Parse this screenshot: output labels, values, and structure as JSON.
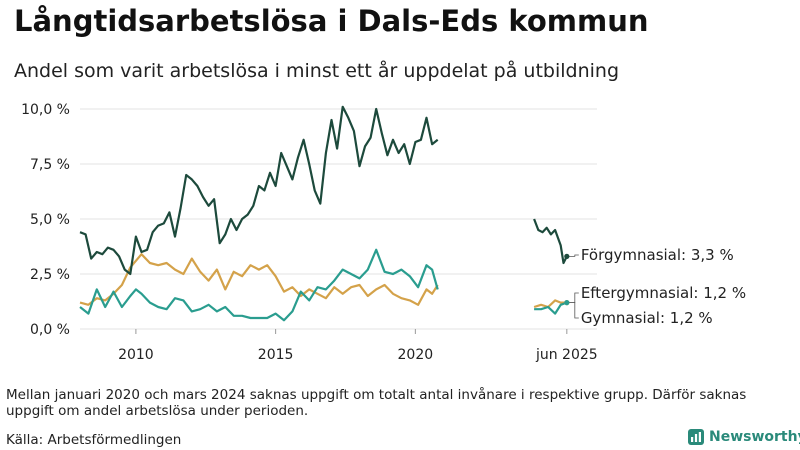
{
  "title": "Långtidsarbetslösa i Dals-Eds kommun",
  "subtitle": "Andel som varit arbetslösa i minst ett år uppdelat på utbildning",
  "note": "Mellan januari 2020 och mars 2024 saknas uppgift om totalt antal invånare i respektive grupp. Därför saknas uppgift om andel arbetslösa under perioden.",
  "source": "Källa: Arbetsförmedlingen",
  "brand": {
    "name": "Newsworthy",
    "icon": "newsworthy-logo-icon"
  },
  "chart_data": {
    "type": "line",
    "xlim": [
      2008.0,
      2026.5
    ],
    "ylim": [
      0,
      10.5
    ],
    "y_ticks": [
      {
        "value": 0,
        "label": "0,0 %"
      },
      {
        "value": 2.5,
        "label": "2,5 %"
      },
      {
        "value": 5,
        "label": "5,0 %"
      },
      {
        "value": 7.5,
        "label": "7,5 %"
      },
      {
        "value": 10,
        "label": "10,0 %"
      }
    ],
    "x_ticks": [
      {
        "value": 2010,
        "label": "2010"
      },
      {
        "value": 2015,
        "label": "2015"
      },
      {
        "value": 2020,
        "label": "2020"
      },
      {
        "value": 2025.42,
        "label": "jun 2025"
      }
    ],
    "grid": "horizontal",
    "series": [
      {
        "name": "Förgymnasial",
        "end_label": "Förgymnasial: 3,3 %",
        "color": "#1d4a3c",
        "segments": [
          [
            [
              2008.0,
              4.4
            ],
            [
              2008.2,
              4.3
            ],
            [
              2008.4,
              3.2
            ],
            [
              2008.6,
              3.5
            ],
            [
              2008.8,
              3.4
            ],
            [
              2009.0,
              3.7
            ],
            [
              2009.2,
              3.6
            ],
            [
              2009.4,
              3.3
            ],
            [
              2009.6,
              2.7
            ],
            [
              2009.8,
              2.5
            ],
            [
              2010.0,
              4.2
            ],
            [
              2010.2,
              3.5
            ],
            [
              2010.4,
              3.6
            ],
            [
              2010.6,
              4.4
            ],
            [
              2010.8,
              4.7
            ],
            [
              2011.0,
              4.8
            ],
            [
              2011.2,
              5.3
            ],
            [
              2011.4,
              4.2
            ],
            [
              2011.6,
              5.5
            ],
            [
              2011.8,
              7.0
            ],
            [
              2012.0,
              6.8
            ],
            [
              2012.2,
              6.5
            ],
            [
              2012.4,
              6.0
            ],
            [
              2012.6,
              5.6
            ],
            [
              2012.8,
              5.9
            ],
            [
              2013.0,
              3.9
            ],
            [
              2013.2,
              4.3
            ],
            [
              2013.4,
              5.0
            ],
            [
              2013.6,
              4.5
            ],
            [
              2013.8,
              5.0
            ],
            [
              2014.0,
              5.2
            ],
            [
              2014.2,
              5.6
            ],
            [
              2014.4,
              6.5
            ],
            [
              2014.6,
              6.3
            ],
            [
              2014.8,
              7.1
            ],
            [
              2015.0,
              6.5
            ],
            [
              2015.2,
              8.0
            ],
            [
              2015.4,
              7.4
            ],
            [
              2015.6,
              6.8
            ],
            [
              2015.8,
              7.8
            ],
            [
              2016.0,
              8.6
            ],
            [
              2016.2,
              7.5
            ],
            [
              2016.4,
              6.3
            ],
            [
              2016.6,
              5.7
            ],
            [
              2016.8,
              8.0
            ],
            [
              2017.0,
              9.5
            ],
            [
              2017.2,
              8.2
            ],
            [
              2017.4,
              10.1
            ],
            [
              2017.6,
              9.6
            ],
            [
              2017.8,
              9.0
            ],
            [
              2018.0,
              7.4
            ],
            [
              2018.2,
              8.3
            ],
            [
              2018.4,
              8.7
            ],
            [
              2018.6,
              10.0
            ],
            [
              2018.8,
              8.9
            ],
            [
              2019.0,
              7.9
            ],
            [
              2019.2,
              8.6
            ],
            [
              2019.4,
              8.0
            ],
            [
              2019.6,
              8.4
            ],
            [
              2019.8,
              7.5
            ],
            [
              2020.0,
              8.5
            ],
            [
              2020.2,
              8.6
            ],
            [
              2020.4,
              9.6
            ],
            [
              2020.6,
              8.4
            ],
            [
              2020.8,
              8.6
            ]
          ],
          [
            [
              2024.25,
              5.0
            ],
            [
              2024.4,
              4.5
            ],
            [
              2024.55,
              4.4
            ],
            [
              2024.7,
              4.6
            ],
            [
              2024.85,
              4.3
            ],
            [
              2025.0,
              4.5
            ],
            [
              2025.2,
              3.8
            ],
            [
              2025.3,
              3.0
            ],
            [
              2025.42,
              3.3
            ]
          ]
        ]
      },
      {
        "name": "Eftergymnasial",
        "end_label": "Eftergymnasial: 1,2 %",
        "color": "#d4a24a",
        "segments": [
          [
            [
              2008.0,
              1.2
            ],
            [
              2008.3,
              1.1
            ],
            [
              2008.6,
              1.4
            ],
            [
              2008.9,
              1.3
            ],
            [
              2009.2,
              1.6
            ],
            [
              2009.5,
              2.0
            ],
            [
              2009.8,
              2.8
            ],
            [
              2010.0,
              3.1
            ],
            [
              2010.2,
              3.4
            ],
            [
              2010.5,
              3.0
            ],
            [
              2010.8,
              2.9
            ],
            [
              2011.1,
              3.0
            ],
            [
              2011.4,
              2.7
            ],
            [
              2011.7,
              2.5
            ],
            [
              2012.0,
              3.2
            ],
            [
              2012.3,
              2.6
            ],
            [
              2012.6,
              2.2
            ],
            [
              2012.9,
              2.7
            ],
            [
              2013.2,
              1.8
            ],
            [
              2013.5,
              2.6
            ],
            [
              2013.8,
              2.4
            ],
            [
              2014.1,
              2.9
            ],
            [
              2014.4,
              2.7
            ],
            [
              2014.7,
              2.9
            ],
            [
              2015.0,
              2.4
            ],
            [
              2015.3,
              1.7
            ],
            [
              2015.6,
              1.9
            ],
            [
              2015.9,
              1.5
            ],
            [
              2016.2,
              1.8
            ],
            [
              2016.5,
              1.6
            ],
            [
              2016.8,
              1.4
            ],
            [
              2017.1,
              1.9
            ],
            [
              2017.4,
              1.6
            ],
            [
              2017.7,
              1.9
            ],
            [
              2018.0,
              2.0
            ],
            [
              2018.3,
              1.5
            ],
            [
              2018.6,
              1.8
            ],
            [
              2018.9,
              2.0
            ],
            [
              2019.2,
              1.6
            ],
            [
              2019.5,
              1.4
            ],
            [
              2019.8,
              1.3
            ],
            [
              2020.1,
              1.1
            ],
            [
              2020.4,
              1.8
            ],
            [
              2020.6,
              1.6
            ],
            [
              2020.8,
              2.0
            ]
          ],
          [
            [
              2024.25,
              1.0
            ],
            [
              2024.5,
              1.1
            ],
            [
              2024.75,
              1.0
            ],
            [
              2025.0,
              1.3
            ],
            [
              2025.2,
              1.2
            ],
            [
              2025.42,
              1.2
            ]
          ]
        ]
      },
      {
        "name": "Gymnasial",
        "end_label": "Gymnasial: 1,2 %",
        "color": "#2a9d8f",
        "segments": [
          [
            [
              2008.0,
              1.0
            ],
            [
              2008.3,
              0.7
            ],
            [
              2008.6,
              1.8
            ],
            [
              2008.9,
              1.0
            ],
            [
              2009.2,
              1.7
            ],
            [
              2009.5,
              1.0
            ],
            [
              2009.8,
              1.5
            ],
            [
              2010.0,
              1.8
            ],
            [
              2010.2,
              1.6
            ],
            [
              2010.5,
              1.2
            ],
            [
              2010.8,
              1.0
            ],
            [
              2011.1,
              0.9
            ],
            [
              2011.4,
              1.4
            ],
            [
              2011.7,
              1.3
            ],
            [
              2012.0,
              0.8
            ],
            [
              2012.3,
              0.9
            ],
            [
              2012.6,
              1.1
            ],
            [
              2012.9,
              0.8
            ],
            [
              2013.2,
              1.0
            ],
            [
              2013.5,
              0.6
            ],
            [
              2013.8,
              0.6
            ],
            [
              2014.1,
              0.5
            ],
            [
              2014.4,
              0.5
            ],
            [
              2014.7,
              0.5
            ],
            [
              2015.0,
              0.7
            ],
            [
              2015.3,
              0.4
            ],
            [
              2015.6,
              0.8
            ],
            [
              2015.9,
              1.7
            ],
            [
              2016.2,
              1.3
            ],
            [
              2016.5,
              1.9
            ],
            [
              2016.8,
              1.8
            ],
            [
              2017.1,
              2.2
            ],
            [
              2017.4,
              2.7
            ],
            [
              2017.7,
              2.5
            ],
            [
              2018.0,
              2.3
            ],
            [
              2018.3,
              2.7
            ],
            [
              2018.6,
              3.6
            ],
            [
              2018.9,
              2.6
            ],
            [
              2019.2,
              2.5
            ],
            [
              2019.5,
              2.7
            ],
            [
              2019.8,
              2.4
            ],
            [
              2020.1,
              1.9
            ],
            [
              2020.4,
              2.9
            ],
            [
              2020.6,
              2.7
            ],
            [
              2020.8,
              1.8
            ]
          ],
          [
            [
              2024.25,
              0.9
            ],
            [
              2024.5,
              0.9
            ],
            [
              2024.75,
              1.0
            ],
            [
              2025.0,
              0.7
            ],
            [
              2025.2,
              1.1
            ],
            [
              2025.42,
              1.2
            ]
          ]
        ]
      }
    ]
  }
}
